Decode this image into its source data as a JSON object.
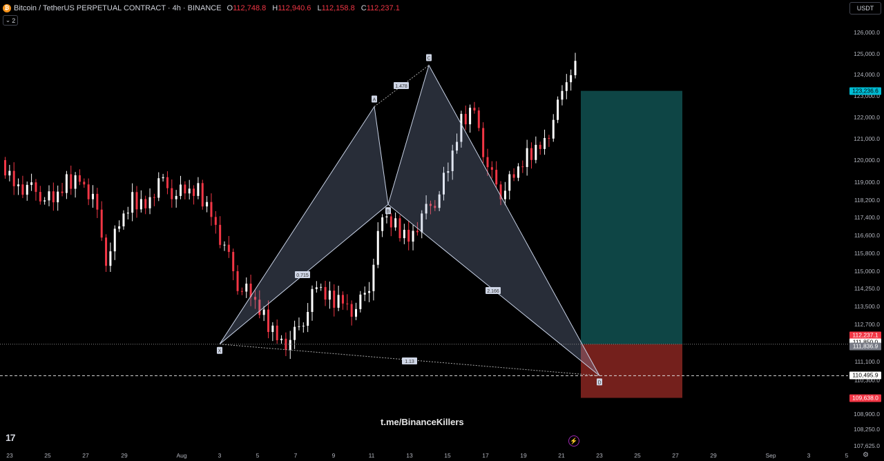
{
  "header": {
    "title": "Bitcoin / TetherUS PERPETUAL CONTRACT · 4h · BINANCE",
    "ohlc": [
      {
        "k": "O",
        "v": "112,748.8"
      },
      {
        "k": "H",
        "v": "112,940.6"
      },
      {
        "k": "L",
        "v": "112,158.8"
      },
      {
        "k": "C",
        "v": "112,237.1"
      }
    ],
    "collapse_count": "2",
    "currency": "USDT"
  },
  "icons": {
    "collapse": "chevron-down-icon",
    "logo": "tradingview-logo",
    "flash": "lightning-icon",
    "settings": "gear-icon"
  },
  "watermark": "t.me/BinanceKillers",
  "logo_text": "17",
  "colors": {
    "up": "#ffffff",
    "down": "#f23645",
    "pattern_fill": "#8fa3c8",
    "tp_zone": "#0f4c4d",
    "sl_zone": "#7a221d",
    "accent": "#00bcd4"
  },
  "chart_data": {
    "type": "candlestick",
    "symbol": "BTCUSDT.P",
    "timeframe": "4h",
    "y_ticks": [
      "126,000.0",
      "125,000.0",
      "124,000.0",
      "123,000.0",
      "122,000.0",
      "121,000.0",
      "120,000.0",
      "119,000.0",
      "118,200.0",
      "117,400.0",
      "116,600.0",
      "115,800.0",
      "115,000.0",
      "114,250.0",
      "113,500.0",
      "112,700.0",
      "111,100.0",
      "110,300.0",
      "109,600.0",
      "108,900.0",
      "108,250.0",
      "107,625.0"
    ],
    "x_ticks": [
      "23",
      "25",
      "27",
      "29",
      "Aug",
      "3",
      "5",
      "7",
      "9",
      "11",
      "13",
      "15",
      "17",
      "19",
      "21",
      "23",
      "25",
      "27",
      "29",
      "Sep",
      "3",
      "5"
    ],
    "price_tags": [
      {
        "label": "123,236.6",
        "value": 123236.6,
        "style": "cyan"
      },
      {
        "label": "112,237.1",
        "value": 112237.1,
        "style": "red"
      },
      {
        "label": "111,850.0",
        "value": 111850.0,
        "style": "white"
      },
      {
        "label": "111,836.9",
        "value": 111836.9,
        "style": "gray"
      },
      {
        "label": "110,495.9",
        "value": 110495.9,
        "style": "white"
      },
      {
        "label": "109,638.0",
        "value": 109638.0,
        "style": "red"
      }
    ],
    "pattern": {
      "type": "XABCD",
      "points": [
        {
          "label": "X",
          "date": "Aug 3",
          "price": 111850
        },
        {
          "label": "A",
          "date": "Aug 11",
          "price": 122500
        },
        {
          "label": "B",
          "date": "Aug 12",
          "price": 118000
        },
        {
          "label": "C",
          "date": "Aug 14",
          "price": 124450
        },
        {
          "label": "D",
          "date": "Aug 22",
          "price": 110495.9
        }
      ],
      "ratios": [
        "1.478",
        "0.715",
        "2.166",
        "1.13"
      ]
    },
    "position": {
      "entry": 111850.0,
      "take_profit": 123236.6,
      "stop_loss": 109638.0,
      "current": 112237.1
    }
  }
}
